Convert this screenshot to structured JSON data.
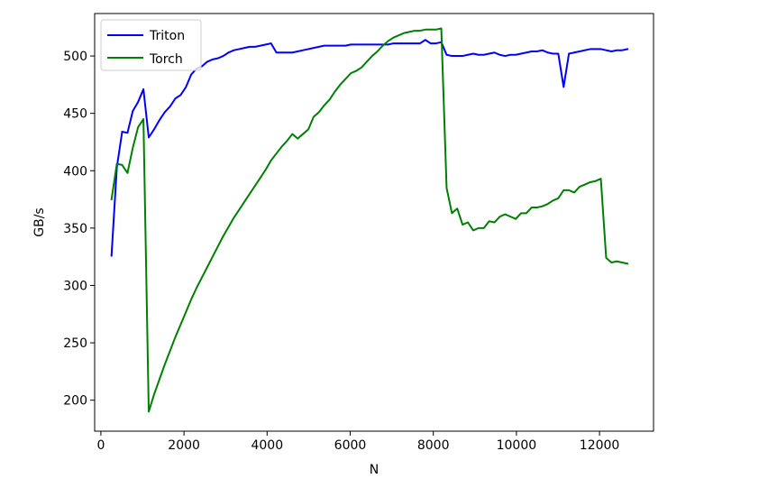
{
  "chart_data": {
    "type": "line",
    "title": "",
    "xlabel": "N",
    "ylabel": "GB/s",
    "xlim": [
      -150,
      13300
    ],
    "ylim": [
      173,
      537
    ],
    "xticks": [
      0,
      2000,
      4000,
      6000,
      8000,
      10000,
      12000
    ],
    "xtick_labels": [
      "0",
      "2000",
      "4000",
      "6000",
      "8000",
      "10000",
      "12000"
    ],
    "yticks": [
      200,
      250,
      300,
      350,
      400,
      450,
      500
    ],
    "ytick_labels": [
      "200",
      "250",
      "300",
      "350",
      "400",
      "450",
      "500"
    ],
    "grid": false,
    "legend": "upper left",
    "series": [
      {
        "name": "Triton",
        "color": "#0000ff",
        "x": [
          256,
          384,
          512,
          640,
          768,
          896,
          1024,
          1152,
          1280,
          1408,
          1536,
          1664,
          1792,
          1920,
          2048,
          2176,
          2304,
          2432,
          2560,
          2688,
          2816,
          2944,
          3072,
          3200,
          3328,
          3456,
          3584,
          3712,
          3840,
          3968,
          4096,
          4224,
          4352,
          4480,
          4608,
          4736,
          4864,
          4992,
          5120,
          5248,
          5376,
          5504,
          5632,
          5760,
          5888,
          6016,
          6144,
          6272,
          6400,
          6528,
          6656,
          6784,
          6912,
          7040,
          7168,
          7296,
          7424,
          7552,
          7680,
          7808,
          7936,
          8064,
          8192,
          8320,
          8448,
          8576,
          8704,
          8832,
          8960,
          9088,
          9216,
          9344,
          9472,
          9600,
          9728,
          9856,
          9984,
          10112,
          10240,
          10368,
          10496,
          10624,
          10752,
          10880,
          11008,
          11136,
          11264,
          11392,
          11520,
          11648,
          11776,
          11904,
          12032,
          12160,
          12288,
          12416,
          12544,
          12672
        ],
        "values": [
          326,
          403,
          434,
          433,
          452,
          460,
          471,
          429,
          436,
          444,
          451,
          456,
          463,
          466,
          473,
          484,
          489,
          491,
          495,
          497,
          498,
          500,
          503,
          505,
          506,
          507,
          508,
          508,
          509,
          510,
          511,
          503,
          503,
          503,
          503,
          504,
          505,
          506,
          507,
          508,
          509,
          509,
          509,
          509,
          509,
          510,
          510,
          510,
          510,
          510,
          510,
          510,
          510,
          511,
          511,
          511,
          511,
          511,
          511,
          514,
          511,
          511,
          512,
          501,
          500,
          500,
          500,
          501,
          502,
          501,
          501,
          502,
          503,
          501,
          500,
          501,
          501,
          502,
          503,
          504,
          504,
          505,
          503,
          502,
          502,
          473,
          502,
          503,
          504,
          505,
          506,
          506,
          506,
          505,
          504,
          505,
          505,
          506
        ]
      },
      {
        "name": "Torch",
        "color": "#008000",
        "x": [
          256,
          384,
          512,
          640,
          768,
          896,
          1024,
          1152,
          1280,
          1408,
          1536,
          1664,
          1792,
          1920,
          2048,
          2176,
          2304,
          2432,
          2560,
          2688,
          2816,
          2944,
          3072,
          3200,
          3328,
          3456,
          3584,
          3712,
          3840,
          3968,
          4096,
          4224,
          4352,
          4480,
          4608,
          4736,
          4864,
          4992,
          5120,
          5248,
          5376,
          5504,
          5632,
          5760,
          5888,
          6016,
          6144,
          6272,
          6400,
          6528,
          6656,
          6784,
          6912,
          7040,
          7168,
          7296,
          7424,
          7552,
          7680,
          7808,
          7936,
          8064,
          8192,
          8320,
          8448,
          8576,
          8704,
          8832,
          8960,
          9088,
          9216,
          9344,
          9472,
          9600,
          9728,
          9856,
          9984,
          10112,
          10240,
          10368,
          10496,
          10624,
          10752,
          10880,
          11008,
          11136,
          11264,
          11392,
          11520,
          11648,
          11776,
          11904,
          12032,
          12160,
          12288,
          12416,
          12544,
          12672
        ],
        "values": [
          375,
          406,
          405,
          398,
          420,
          438,
          445,
          190,
          205,
          218,
          231,
          243,
          255,
          266,
          277,
          288,
          298,
          307,
          316,
          325,
          334,
          343,
          351,
          359,
          366,
          373,
          380,
          387,
          394,
          401,
          409,
          415,
          421,
          426,
          432,
          428,
          432,
          436,
          447,
          451,
          457,
          462,
          469,
          475,
          480,
          485,
          487,
          490,
          495,
          500,
          504,
          509,
          513,
          516,
          518,
          520,
          521,
          522,
          522,
          523,
          523,
          523,
          524,
          385,
          363,
          367,
          353,
          355,
          348,
          350,
          350,
          356,
          355,
          360,
          362,
          360,
          358,
          363,
          363,
          368,
          368,
          369,
          371,
          374,
          376,
          383,
          383,
          381,
          386,
          388,
          390,
          391,
          393,
          324,
          320,
          321,
          320,
          319
        ]
      }
    ]
  }
}
